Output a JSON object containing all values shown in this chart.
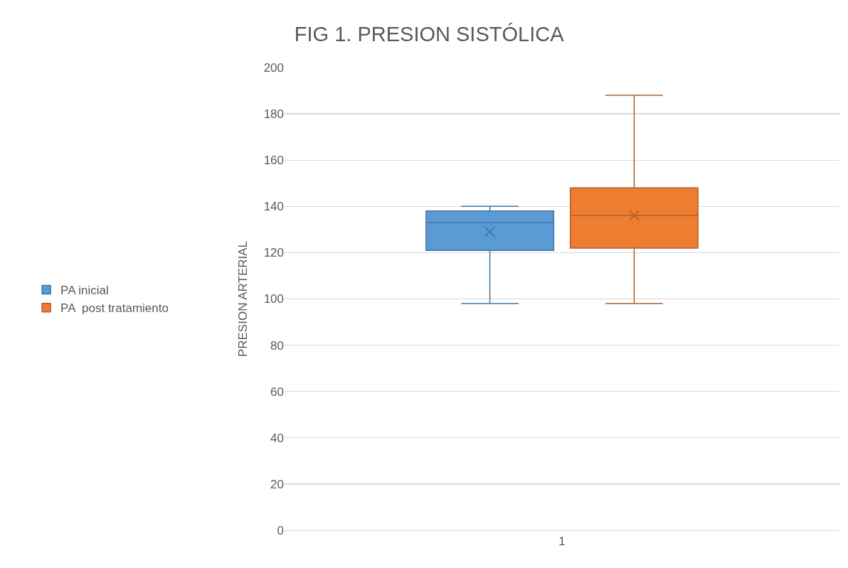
{
  "chart_data": {
    "type": "box",
    "title": "FIG 1. PRESION SISTÓLICA",
    "ylabel": "PRESION ARTERIAL",
    "categories": [
      "1"
    ],
    "series": [
      {
        "name": "PA inicial",
        "color": "#5b9bd5",
        "boxes": [
          {
            "low": 98,
            "q1": 121,
            "median": 133,
            "q3": 138,
            "high": 140,
            "mean": 129
          }
        ]
      },
      {
        "name": "PA  post tratamiento",
        "color": "#ed7d31",
        "boxes": [
          {
            "low": 98,
            "q1": 122,
            "median": 136,
            "q3": 148,
            "high": 188,
            "mean": 136
          }
        ]
      }
    ],
    "ylim": [
      0,
      200
    ],
    "yticks": [
      0,
      20,
      40,
      60,
      80,
      100,
      120,
      140,
      160,
      180,
      200
    ],
    "grid": "y",
    "legend": "left"
  }
}
